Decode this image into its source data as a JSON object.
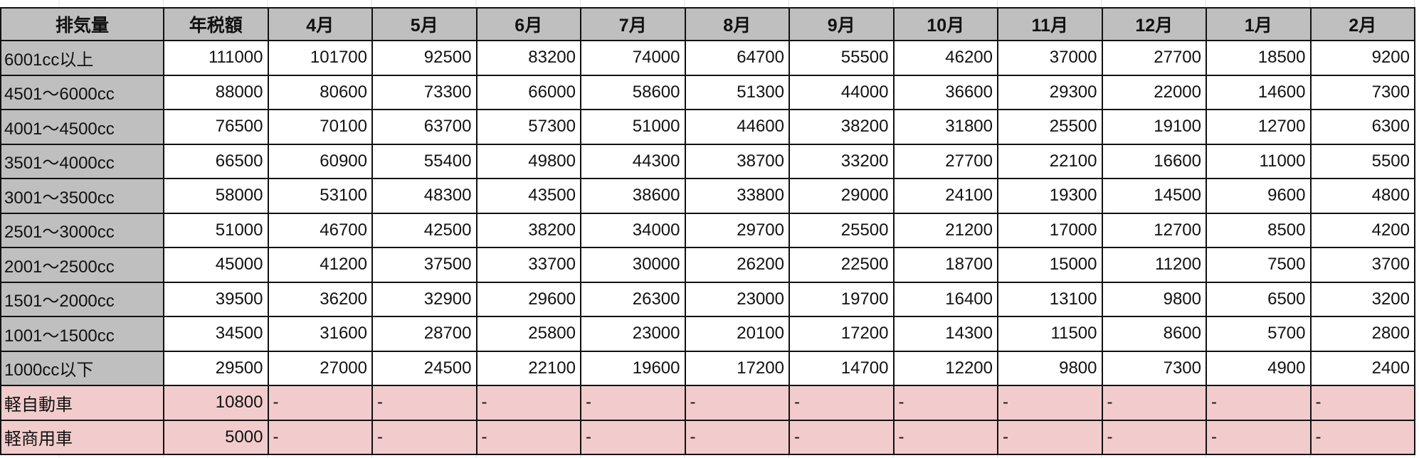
{
  "headers": [
    "排気量",
    "年税額",
    "4月",
    "5月",
    "6月",
    "7月",
    "8月",
    "9月",
    "10月",
    "11月",
    "12月",
    "1月",
    "2月"
  ],
  "rows": [
    {
      "label": "6001cc以上",
      "values": [
        "111000",
        "101700",
        "92500",
        "83200",
        "74000",
        "64700",
        "55500",
        "46200",
        "37000",
        "27700",
        "18500",
        "9200"
      ]
    },
    {
      "label": "4501～6000cc",
      "values": [
        "88000",
        "80600",
        "73300",
        "66000",
        "58600",
        "51300",
        "44000",
        "36600",
        "29300",
        "22000",
        "14600",
        "7300"
      ]
    },
    {
      "label": "4001～4500cc",
      "values": [
        "76500",
        "70100",
        "63700",
        "57300",
        "51000",
        "44600",
        "38200",
        "31800",
        "25500",
        "19100",
        "12700",
        "6300"
      ]
    },
    {
      "label": "3501～4000cc",
      "values": [
        "66500",
        "60900",
        "55400",
        "49800",
        "44300",
        "38700",
        "33200",
        "27700",
        "22100",
        "16600",
        "11000",
        "5500"
      ]
    },
    {
      "label": "3001～3500cc",
      "values": [
        "58000",
        "53100",
        "48300",
        "43500",
        "38600",
        "33800",
        "29000",
        "24100",
        "19300",
        "14500",
        "9600",
        "4800"
      ]
    },
    {
      "label": "2501～3000cc",
      "values": [
        "51000",
        "46700",
        "42500",
        "38200",
        "34000",
        "29700",
        "25500",
        "21200",
        "17000",
        "12700",
        "8500",
        "4200"
      ]
    },
    {
      "label": "2001～2500cc",
      "values": [
        "45000",
        "41200",
        "37500",
        "33700",
        "30000",
        "26200",
        "22500",
        "18700",
        "15000",
        "11200",
        "7500",
        "3700"
      ]
    },
    {
      "label": "1501～2000cc",
      "values": [
        "39500",
        "36200",
        "32900",
        "29600",
        "26300",
        "23000",
        "19700",
        "16400",
        "13100",
        "9800",
        "6500",
        "3200"
      ]
    },
    {
      "label": "1001～1500cc",
      "values": [
        "34500",
        "31600",
        "28700",
        "25800",
        "23000",
        "20100",
        "17200",
        "14300",
        "11500",
        "8600",
        "5700",
        "2800"
      ]
    },
    {
      "label": "1000cc以下",
      "values": [
        "29500",
        "27000",
        "24500",
        "22100",
        "19600",
        "17200",
        "14700",
        "12200",
        "9800",
        "7300",
        "4900",
        "2400"
      ]
    }
  ],
  "kei_rows": [
    {
      "label": "軽自動車",
      "values": [
        "10800",
        "-",
        "-",
        "-",
        "-",
        "-",
        "-",
        "-",
        "-",
        "-",
        "-",
        "-"
      ]
    },
    {
      "label": "軽商用車",
      "values": [
        "5000",
        "-",
        "-",
        "-",
        "-",
        "-",
        "-",
        "-",
        "-",
        "-",
        "-",
        "-"
      ]
    }
  ],
  "colors": {
    "header_bg": "#bfbfbf",
    "label_bg": "#bfbfbf",
    "kei_bg": "#f2cccc"
  }
}
